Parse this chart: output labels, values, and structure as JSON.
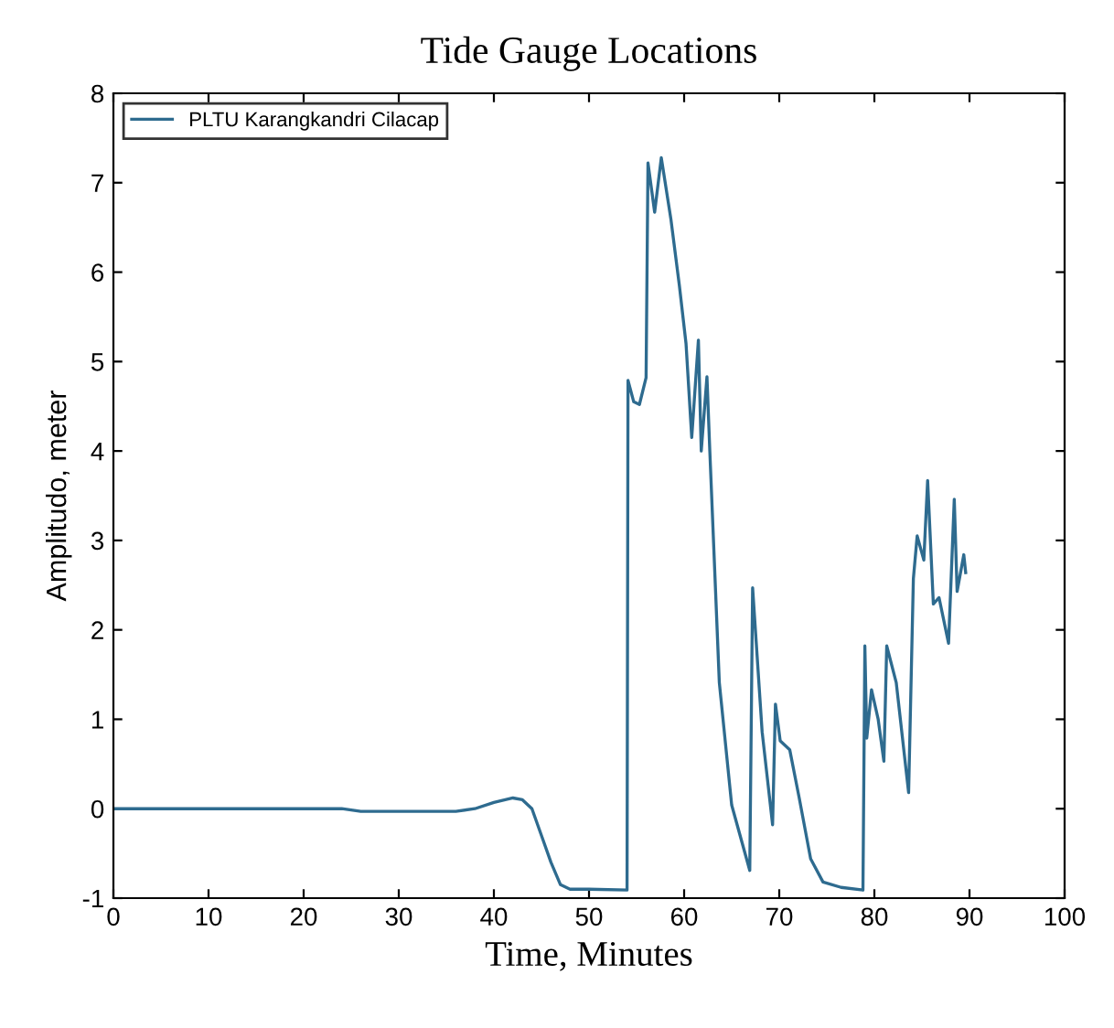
{
  "chart_data": {
    "type": "line",
    "title": "Tide Gauge Locations",
    "xlabel": "Time, Minutes",
    "ylabel": "Amplitudo, meter",
    "xlim": [
      0,
      100
    ],
    "xticks": [
      0,
      10,
      20,
      30,
      40,
      50,
      60,
      70,
      80,
      90,
      100
    ],
    "ylim": [
      -1,
      8
    ],
    "yticks": [
      -1,
      0,
      1,
      2,
      3,
      4,
      5,
      6,
      7,
      8
    ],
    "grid": false,
    "legend": "top left",
    "marker": "none",
    "line_style": "solid",
    "series": [
      {
        "name": "PLTU Karangkandri Cilacap",
        "color": "#2e6b8f",
        "x": [
          0,
          10,
          20,
          24,
          26,
          30,
          36,
          38,
          40,
          42,
          43,
          44,
          45,
          46,
          47,
          48,
          50,
          54.0,
          54.1,
          54.7,
          55.3,
          56.0,
          56.2,
          56.9,
          57.6,
          58.6,
          59.5,
          60.2,
          60.8,
          61.5,
          61.8,
          62.4,
          62.7,
          63.7,
          65.0,
          66.9,
          67.2,
          68.2,
          69.3,
          69.6,
          70.1,
          71.1,
          72.1,
          73.3,
          74.6,
          76.5,
          78.8,
          79.0,
          79.2,
          79.7,
          80.4,
          81.0,
          81.3,
          82.3,
          83.6,
          84.1,
          84.5,
          85.2,
          85.6,
          86.2,
          86.8,
          87.8,
          88.4,
          88.7,
          89.4,
          89.6
        ],
        "values": [
          0,
          0,
          0,
          0,
          -0.03,
          -0.03,
          -0.03,
          0.0,
          0.07,
          0.12,
          0.1,
          0.0,
          -0.3,
          -0.6,
          -0.85,
          -0.9,
          -0.9,
          -0.91,
          4.79,
          4.55,
          4.52,
          4.82,
          7.22,
          6.67,
          7.28,
          6.6,
          5.85,
          5.2,
          4.15,
          5.24,
          4.0,
          4.83,
          4.0,
          1.41,
          0.04,
          -0.69,
          2.47,
          0.86,
          -0.18,
          1.17,
          0.76,
          0.66,
          0.12,
          -0.56,
          -0.82,
          -0.88,
          -0.91,
          1.82,
          0.79,
          1.33,
          1.0,
          0.53,
          1.82,
          1.41,
          0.18,
          2.57,
          3.05,
          2.78,
          3.67,
          2.29,
          2.36,
          1.85,
          3.46,
          2.43,
          2.84,
          2.64
        ]
      }
    ]
  }
}
